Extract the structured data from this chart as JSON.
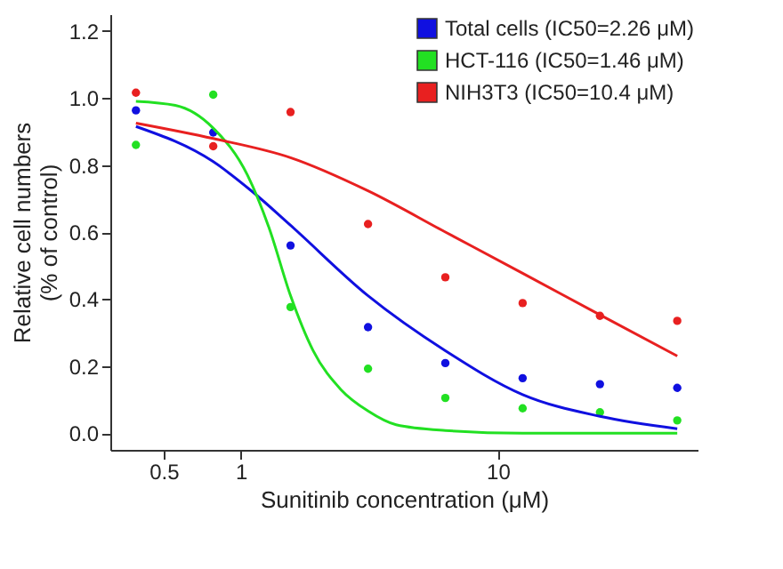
{
  "chart_data": {
    "type": "scatter",
    "xlabel": "Sunitinib concentration (μM)",
    "ylabel": "Relative cell numbers\n(% of control)",
    "log": "x",
    "xlim": [
      0.31,
      60
    ],
    "xticks": [
      0.5,
      1,
      10
    ],
    "ylim": [
      -0.05,
      1.25
    ],
    "yticks": [
      {
        "value": 0,
        "label": "0.0"
      },
      0.2,
      0.4,
      0.6,
      0.8,
      {
        "value": 1,
        "label": "1.0"
      },
      1.2
    ],
    "grid": false,
    "legend": "top right",
    "marker": "circle",
    "series": [
      {
        "name": "Total cells (IC50=2.26 μM)",
        "color": "#1010e0",
        "x": [
          0.39,
          0.78,
          1.56,
          3.125,
          6.25,
          12.5,
          25,
          50
        ],
        "values": [
          0.963,
          0.897,
          0.56,
          0.316,
          0.209,
          0.164,
          0.146,
          0.135
        ]
      },
      {
        "name": "HCT-116 (IC50=1.46 μM)",
        "color": "#22e022",
        "x": [
          0.39,
          0.78,
          1.56,
          3.125,
          6.25,
          12.5,
          25,
          50
        ],
        "values": [
          0.86,
          1.01,
          0.376,
          0.192,
          0.105,
          0.074,
          0.062,
          0.038
        ]
      },
      {
        "name": "NIH3T3 (IC50=10.4 μM)",
        "color": "#e82020",
        "x": [
          0.39,
          0.78,
          1.56,
          3.125,
          6.25,
          12.5,
          25,
          50
        ],
        "values": [
          1.016,
          0.856,
          0.958,
          0.624,
          0.465,
          0.388,
          0.35,
          0.335
        ]
      },
      {
        "type": "line",
        "color": "#1010e0",
        "marker": "none",
        "x": [
          0.39,
          0.78,
          1.11,
          1.56,
          3.125,
          6.25,
          12.5,
          25,
          50
        ],
        "values": [
          0.915,
          0.81,
          0.72,
          0.62,
          0.41,
          0.246,
          0.115,
          0.05,
          0.013
        ]
      },
      {
        "type": "line",
        "color": "#22e022",
        "marker": "none",
        "x": [
          0.39,
          0.555,
          0.78,
          1.06,
          1.29,
          1.56,
          1.91,
          2.45,
          3.125,
          4.02,
          6.25,
          12.5,
          50
        ],
        "values": [
          0.99,
          0.978,
          0.91,
          0.77,
          0.61,
          0.41,
          0.246,
          0.13,
          0.066,
          0.025,
          0.008,
          0.0,
          0.0
        ]
      },
      {
        "type": "line",
        "color": "#e82020",
        "marker": "none",
        "x": [
          0.39,
          0.78,
          1.56,
          3.125,
          6.25,
          12.5,
          25,
          50
        ],
        "values": [
          0.925,
          0.879,
          0.822,
          0.723,
          0.6,
          0.477,
          0.353,
          0.23
        ]
      }
    ]
  }
}
